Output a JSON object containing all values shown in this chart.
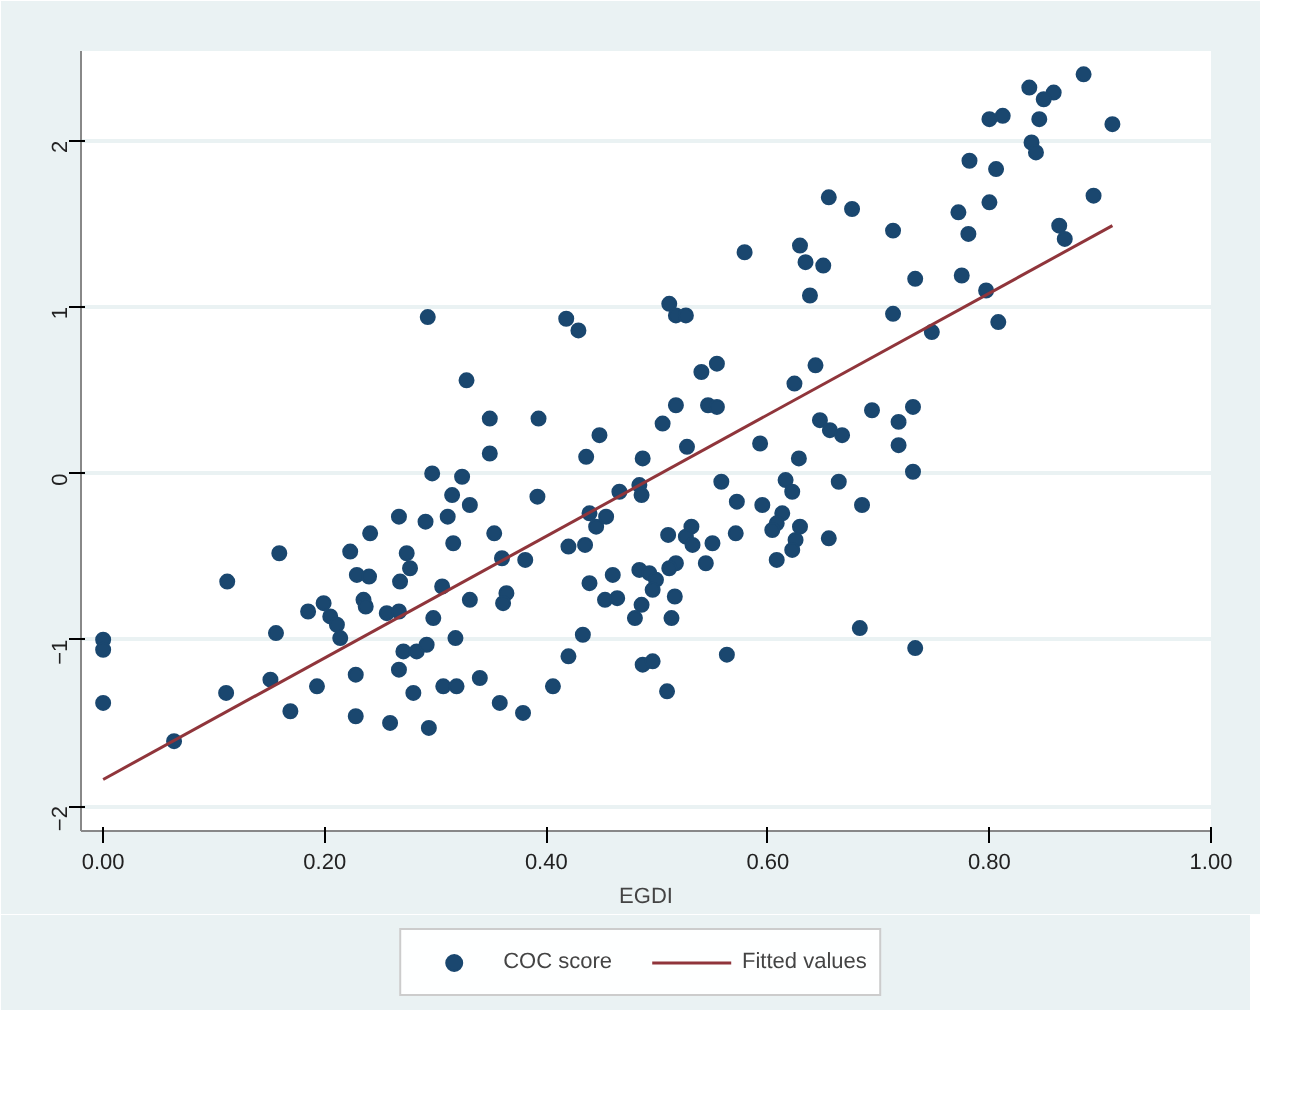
{
  "chart_data": {
    "type": "scatter",
    "xlabel": "EGDI",
    "xlim": [
      -0.02,
      1.0
    ],
    "ylim": [
      -2.15,
      2.54
    ],
    "xticks": [
      {
        "value": 0,
        "label": "0.00"
      },
      {
        "value": 0.2,
        "label": "0.20"
      },
      {
        "value": 0.4,
        "label": "0.40"
      },
      {
        "value": 0.6,
        "label": "0.60"
      },
      {
        "value": 0.8,
        "label": "0.80"
      },
      {
        "value": 1.0,
        "label": "1.00"
      }
    ],
    "yticks": [
      -2,
      -1,
      0,
      1,
      2
    ],
    "grid": "y",
    "legend": "bottom",
    "series": [
      {
        "name": "COC score",
        "type": "scatter",
        "marker": "circle",
        "color": "#1a476f",
        "x": [
          0.293,
          0.418,
          0.429,
          0.328,
          0.349,
          0.393,
          0.448,
          0.349,
          0.436,
          0.885,
          0.836,
          0.858,
          0.849,
          0.911,
          0.8,
          0.812,
          0.845,
          0.838,
          0.842,
          0.782,
          0.806,
          0.655,
          0.676,
          0.772,
          0.8,
          0.894,
          0.713,
          0.781,
          0.863,
          0.868,
          0.579,
          0.629,
          0.634,
          0.65,
          0.733,
          0.775,
          0.638,
          0.797,
          0.713,
          0.808,
          0.511,
          0.517,
          0.526,
          0.748,
          0.54,
          0.554,
          0.643,
          0.624,
          0.517,
          0.546,
          0.554,
          0.505,
          0.647,
          0.656,
          0.667,
          0.694,
          0.731,
          0.718,
          0.718,
          0.527,
          0.593,
          0.487,
          0.628,
          0.297,
          0.324,
          0.315,
          0.331,
          0.267,
          0.291,
          0.311,
          0.241,
          0.392,
          0.353,
          0.316,
          0.159,
          0.223,
          0.274,
          0.277,
          0.268,
          0.36,
          0.381,
          0.42,
          0.435,
          0.439,
          0.445,
          0.229,
          0.24,
          0.112,
          0.306,
          0.235,
          0.237,
          0.331,
          0.364,
          0.361,
          0.439,
          0.453,
          0.185,
          0.199,
          0.205,
          0.211,
          0.214,
          0.256,
          0.267,
          0.298,
          0.156,
          0.318,
          0.271,
          0.283,
          0.292,
          0.0,
          0.0,
          0.433,
          0.42,
          0.267,
          0.228,
          0.151,
          0.111,
          0.193,
          0.28,
          0.307,
          0.319,
          0.34,
          0.406,
          0.0,
          0.358,
          0.379,
          0.169,
          0.228,
          0.259,
          0.294,
          0.064,
          0.731,
          0.558,
          0.616,
          0.622,
          0.664,
          0.685,
          0.484,
          0.486,
          0.466,
          0.572,
          0.595,
          0.613,
          0.608,
          0.604,
          0.629,
          0.625,
          0.622,
          0.655,
          0.454,
          0.51,
          0.531,
          0.526,
          0.532,
          0.55,
          0.544,
          0.571,
          0.608,
          0.517,
          0.511,
          0.46,
          0.484,
          0.493,
          0.499,
          0.496,
          0.516,
          0.464,
          0.486,
          0.48,
          0.513,
          0.487,
          0.496,
          0.509,
          0.563,
          0.683,
          0.733
        ],
        "values": [
          0.94,
          0.93,
          0.86,
          0.56,
          0.33,
          0.33,
          0.23,
          0.12,
          0.1,
          2.4,
          2.32,
          2.29,
          2.25,
          2.1,
          2.13,
          2.15,
          2.13,
          1.99,
          1.93,
          1.88,
          1.83,
          1.66,
          1.59,
          1.57,
          1.63,
          1.67,
          1.46,
          1.44,
          1.49,
          1.41,
          1.33,
          1.37,
          1.27,
          1.25,
          1.17,
          1.19,
          1.07,
          1.1,
          0.96,
          0.91,
          1.02,
          0.95,
          0.95,
          0.85,
          0.61,
          0.66,
          0.65,
          0.54,
          0.41,
          0.41,
          0.4,
          0.3,
          0.32,
          0.26,
          0.23,
          0.38,
          0.4,
          0.31,
          0.17,
          0.16,
          0.18,
          0.09,
          0.09,
          0.0,
          -0.02,
          -0.13,
          -0.19,
          -0.26,
          -0.29,
          -0.26,
          -0.36,
          -0.14,
          -0.36,
          -0.42,
          -0.48,
          -0.47,
          -0.48,
          -0.57,
          -0.65,
          -0.51,
          -0.52,
          -0.44,
          -0.43,
          -0.24,
          -0.32,
          -0.61,
          -0.62,
          -0.65,
          -0.68,
          -0.76,
          -0.8,
          -0.76,
          -0.72,
          -0.78,
          -0.66,
          -0.76,
          -0.83,
          -0.78,
          -0.86,
          -0.91,
          -0.99,
          -0.84,
          -0.83,
          -0.87,
          -0.96,
          -0.99,
          -1.07,
          -1.07,
          -1.03,
          -1.0,
          -1.06,
          -0.97,
          -1.1,
          -1.18,
          -1.21,
          -1.24,
          -1.32,
          -1.28,
          -1.32,
          -1.28,
          -1.28,
          -1.23,
          -1.28,
          -1.38,
          -1.38,
          -1.44,
          -1.43,
          -1.46,
          -1.5,
          -1.53,
          -1.61,
          0.01,
          -0.05,
          -0.04,
          -0.11,
          -0.05,
          -0.19,
          -0.07,
          -0.13,
          -0.11,
          -0.17,
          -0.19,
          -0.24,
          -0.3,
          -0.34,
          -0.32,
          -0.4,
          -0.46,
          -0.39,
          -0.26,
          -0.37,
          -0.32,
          -0.38,
          -0.43,
          -0.42,
          -0.54,
          -0.36,
          -0.52,
          -0.54,
          -0.57,
          -0.61,
          -0.58,
          -0.6,
          -0.64,
          -0.7,
          -0.74,
          -0.75,
          -0.79,
          -0.87,
          -0.87,
          -1.15,
          -1.13,
          -1.31,
          -1.09,
          -0.93,
          -1.05
        ]
      },
      {
        "name": "Fitted values",
        "type": "line",
        "color": "#90353b",
        "x": [
          0.0,
          0.911
        ],
        "values": [
          -1.84,
          1.49
        ]
      }
    ]
  }
}
